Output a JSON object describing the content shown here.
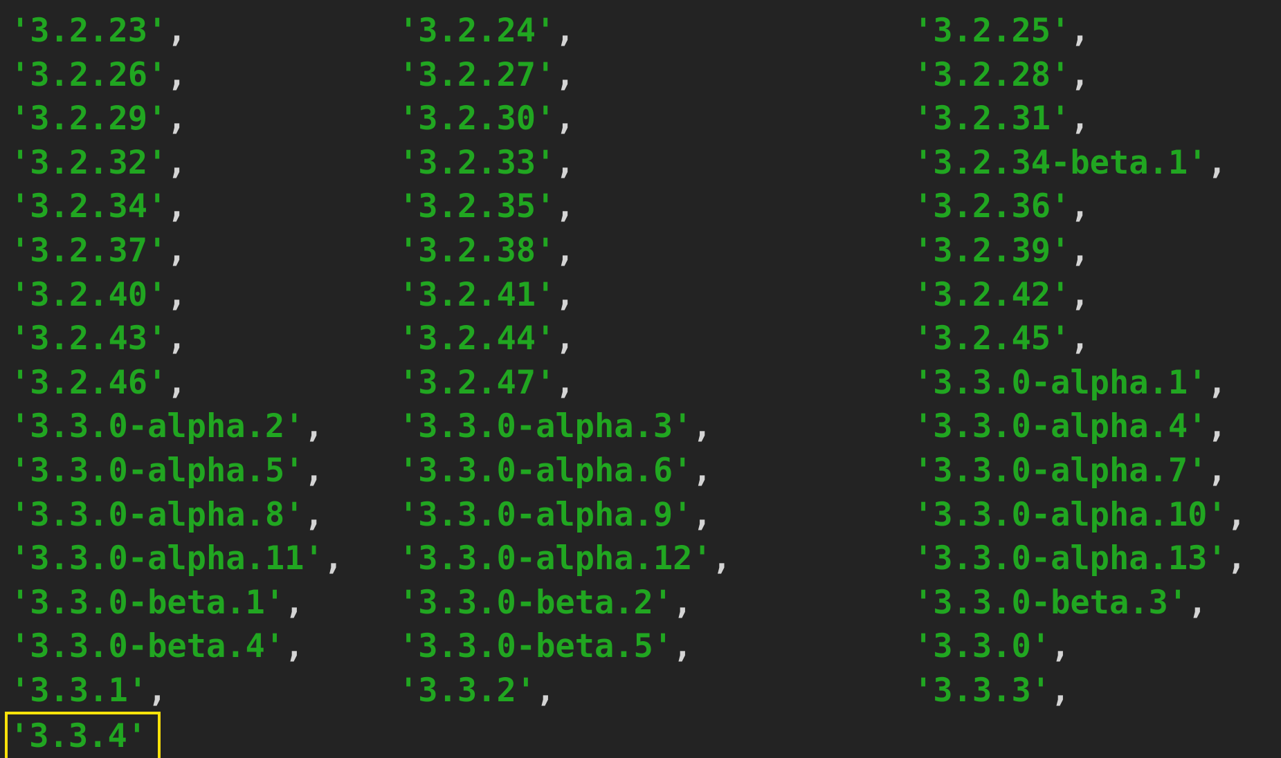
{
  "terminal": {
    "description": "terminal-output-version-list",
    "colors": {
      "background": "#232323",
      "string_green": "#21a621",
      "punctuation_gray": "#d4d4d4",
      "highlight_yellow": "#ffe20a"
    },
    "separator": ",",
    "highlighted_version": "'3.3.4'",
    "rows": [
      {
        "cells": [
          {
            "text": "'3.2.23'",
            "comma": true
          },
          {
            "text": "'3.2.24'",
            "comma": true
          },
          {
            "text": "'3.2.25'",
            "comma": true
          }
        ]
      },
      {
        "cells": [
          {
            "text": "'3.2.26'",
            "comma": true
          },
          {
            "text": "'3.2.27'",
            "comma": true
          },
          {
            "text": "'3.2.28'",
            "comma": true
          }
        ]
      },
      {
        "cells": [
          {
            "text": "'3.2.29'",
            "comma": true
          },
          {
            "text": "'3.2.30'",
            "comma": true
          },
          {
            "text": "'3.2.31'",
            "comma": true
          }
        ]
      },
      {
        "cells": [
          {
            "text": "'3.2.32'",
            "comma": true
          },
          {
            "text": "'3.2.33'",
            "comma": true
          },
          {
            "text": "'3.2.34-beta.1'",
            "comma": true
          }
        ]
      },
      {
        "cells": [
          {
            "text": "'3.2.34'",
            "comma": true
          },
          {
            "text": "'3.2.35'",
            "comma": true
          },
          {
            "text": "'3.2.36'",
            "comma": true
          }
        ]
      },
      {
        "cells": [
          {
            "text": "'3.2.37'",
            "comma": true
          },
          {
            "text": "'3.2.38'",
            "comma": true
          },
          {
            "text": "'3.2.39'",
            "comma": true
          }
        ]
      },
      {
        "cells": [
          {
            "text": "'3.2.40'",
            "comma": true
          },
          {
            "text": "'3.2.41'",
            "comma": true
          },
          {
            "text": "'3.2.42'",
            "comma": true
          }
        ]
      },
      {
        "cells": [
          {
            "text": "'3.2.43'",
            "comma": true
          },
          {
            "text": "'3.2.44'",
            "comma": true
          },
          {
            "text": "'3.2.45'",
            "comma": true
          }
        ]
      },
      {
        "cells": [
          {
            "text": "'3.2.46'",
            "comma": true
          },
          {
            "text": "'3.2.47'",
            "comma": true
          },
          {
            "text": "'3.3.0-alpha.1'",
            "comma": true
          }
        ]
      },
      {
        "cells": [
          {
            "text": "'3.3.0-alpha.2'",
            "comma": true
          },
          {
            "text": "'3.3.0-alpha.3'",
            "comma": true
          },
          {
            "text": "'3.3.0-alpha.4'",
            "comma": true
          }
        ]
      },
      {
        "cells": [
          {
            "text": "'3.3.0-alpha.5'",
            "comma": true
          },
          {
            "text": "'3.3.0-alpha.6'",
            "comma": true
          },
          {
            "text": "'3.3.0-alpha.7'",
            "comma": true
          }
        ]
      },
      {
        "cells": [
          {
            "text": "'3.3.0-alpha.8'",
            "comma": true
          },
          {
            "text": "'3.3.0-alpha.9'",
            "comma": true
          },
          {
            "text": "'3.3.0-alpha.10'",
            "comma": true
          }
        ]
      },
      {
        "cells": [
          {
            "text": "'3.3.0-alpha.11'",
            "comma": true
          },
          {
            "text": "'3.3.0-alpha.12'",
            "comma": true
          },
          {
            "text": "'3.3.0-alpha.13'",
            "comma": true
          }
        ]
      },
      {
        "cells": [
          {
            "text": "'3.3.0-beta.1'",
            "comma": true
          },
          {
            "text": "'3.3.0-beta.2'",
            "comma": true
          },
          {
            "text": "'3.3.0-beta.3'",
            "comma": true
          }
        ]
      },
      {
        "cells": [
          {
            "text": "'3.3.0-beta.4'",
            "comma": true
          },
          {
            "text": "'3.3.0-beta.5'",
            "comma": true
          },
          {
            "text": "'3.3.0'",
            "comma": true
          }
        ]
      },
      {
        "cells": [
          {
            "text": "'3.3.1'",
            "comma": true
          },
          {
            "text": "'3.3.2'",
            "comma": true
          },
          {
            "text": "'3.3.3'",
            "comma": true
          }
        ]
      },
      {
        "cells": [
          {
            "text": "'3.3.4'",
            "comma": false,
            "highlighted": true
          }
        ]
      }
    ]
  }
}
